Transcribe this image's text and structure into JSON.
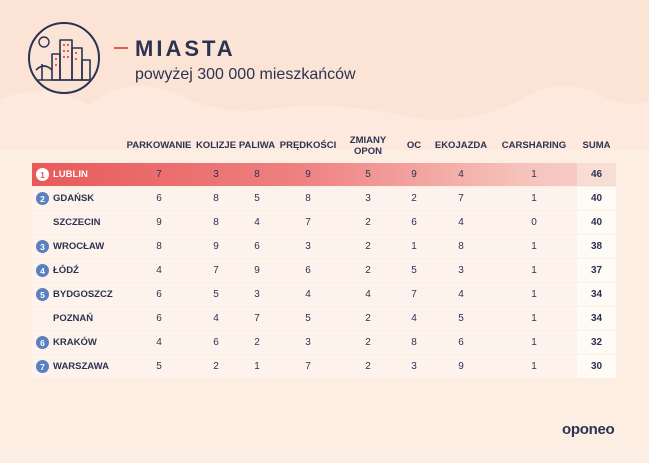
{
  "header": {
    "title": "MIASTA",
    "subtitle": "powyżej 300 000 mieszkańców",
    "icon": "city-skyline-icon"
  },
  "columns": [
    {
      "key": "parkowanie",
      "label": "PARKOWANIE"
    },
    {
      "key": "kolizje",
      "label": "KOLIZJE"
    },
    {
      "key": "paliwa",
      "label": "PALIWA"
    },
    {
      "key": "predkosci",
      "label": "PRĘDKOŚCI"
    },
    {
      "key": "zmiany_opon",
      "label": "ZMIANY\nOPON"
    },
    {
      "key": "oc",
      "label": "OC"
    },
    {
      "key": "ekojazda",
      "label": "EKOJAZDA"
    },
    {
      "key": "carsharing",
      "label": "CARSHARING"
    },
    {
      "key": "suma",
      "label": "SUMA"
    }
  ],
  "rows": [
    {
      "rank": "1",
      "city": "LUBLIN",
      "values": [
        "7",
        "3",
        "8",
        "9",
        "5",
        "9",
        "4",
        "1"
      ],
      "sum": "46"
    },
    {
      "rank": "2",
      "city": "GDAŃSK",
      "values": [
        "6",
        "8",
        "5",
        "8",
        "3",
        "2",
        "7",
        "1"
      ],
      "sum": "40"
    },
    {
      "rank": "",
      "city": "SZCZECIN",
      "values": [
        "9",
        "8",
        "4",
        "7",
        "2",
        "6",
        "4",
        "0"
      ],
      "sum": "40"
    },
    {
      "rank": "3",
      "city": "WROCŁAW",
      "values": [
        "8",
        "9",
        "6",
        "3",
        "2",
        "1",
        "8",
        "1"
      ],
      "sum": "38"
    },
    {
      "rank": "4",
      "city": "ŁÓDŹ",
      "values": [
        "4",
        "7",
        "9",
        "6",
        "2",
        "5",
        "3",
        "1"
      ],
      "sum": "37"
    },
    {
      "rank": "5",
      "city": "BYDGOSZCZ",
      "values": [
        "6",
        "5",
        "3",
        "4",
        "4",
        "7",
        "4",
        "1"
      ],
      "sum": "34"
    },
    {
      "rank": "",
      "city": "POZNAŃ",
      "values": [
        "6",
        "4",
        "7",
        "5",
        "2",
        "4",
        "5",
        "1"
      ],
      "sum": "34"
    },
    {
      "rank": "6",
      "city": "KRAKÓW",
      "values": [
        "4",
        "6",
        "2",
        "3",
        "2",
        "8",
        "6",
        "1"
      ],
      "sum": "32"
    },
    {
      "rank": "7",
      "city": "WARSZAWA",
      "values": [
        "5",
        "2",
        "1",
        "7",
        "2",
        "3",
        "9",
        "1"
      ],
      "sum": "30"
    }
  ],
  "brand": "oponeo",
  "colors": {
    "accent": "#e85a5a",
    "badge": "#5a80c0",
    "text": "#2b3350",
    "background": "#fdeee4"
  }
}
